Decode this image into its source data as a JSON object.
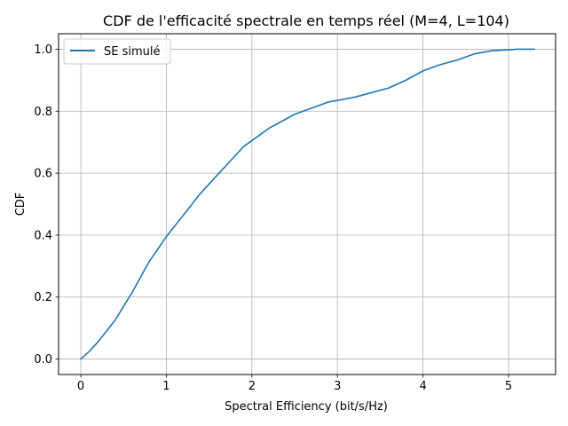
{
  "chart_data": {
    "type": "line",
    "title": "CDF de l'efficacité spectrale en temps réel (M=4, L=104)",
    "xlabel": "Spectral Efficiency (bit/s/Hz)",
    "ylabel": "CDF",
    "xlim": [
      -0.26,
      5.55
    ],
    "ylim": [
      -0.05,
      1.05
    ],
    "xticks": [
      0,
      1,
      2,
      3,
      4,
      5
    ],
    "xtick_labels": [
      "0",
      "1",
      "2",
      "3",
      "4",
      "5"
    ],
    "yticks": [
      0.0,
      0.2,
      0.4,
      0.6,
      0.8,
      1.0
    ],
    "ytick_labels": [
      "0.0",
      "0.2",
      "0.4",
      "0.6",
      "0.8",
      "1.0"
    ],
    "grid": true,
    "legend_position": "upper-left",
    "colors": {
      "series": "#1f77b4",
      "grid": "#b0b0b0",
      "axes": "#000000"
    },
    "series": [
      {
        "name": "SE simulé",
        "x": [
          0.0,
          0.1,
          0.2,
          0.3,
          0.4,
          0.5,
          0.6,
          0.7,
          0.8,
          0.9,
          1.0,
          1.1,
          1.2,
          1.3,
          1.4,
          1.5,
          1.6,
          1.7,
          1.8,
          1.9,
          2.0,
          2.1,
          2.2,
          2.3,
          2.4,
          2.5,
          2.6,
          2.7,
          2.8,
          2.9,
          3.0,
          3.2,
          3.4,
          3.6,
          3.8,
          4.0,
          4.2,
          4.4,
          4.6,
          4.8,
          5.0,
          5.1,
          5.3
        ],
        "y": [
          0.0,
          0.025,
          0.055,
          0.09,
          0.125,
          0.17,
          0.215,
          0.265,
          0.315,
          0.355,
          0.395,
          0.43,
          0.465,
          0.5,
          0.535,
          0.565,
          0.595,
          0.625,
          0.655,
          0.685,
          0.705,
          0.725,
          0.745,
          0.76,
          0.775,
          0.79,
          0.8,
          0.81,
          0.82,
          0.83,
          0.835,
          0.845,
          0.86,
          0.875,
          0.9,
          0.93,
          0.95,
          0.965,
          0.985,
          0.995,
          0.998,
          1.0,
          1.0
        ]
      }
    ]
  }
}
